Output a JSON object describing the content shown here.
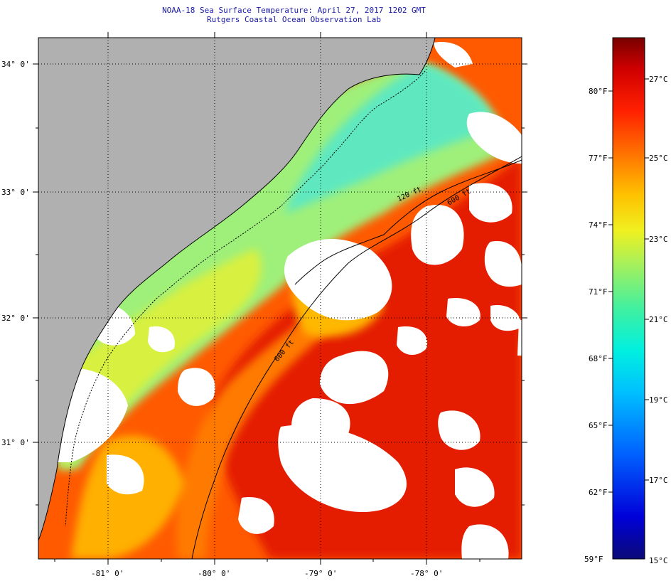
{
  "title": {
    "line1": "NOAA-18 Sea Surface Temperature:  April 27, 2017 1202 GMT",
    "line2": "Rutgers Coastal Ocean Observation Lab"
  },
  "map": {
    "lat_labels": [
      "34° 0'",
      "33° 0'",
      "32° 0'",
      "31° 0'"
    ],
    "lon_labels": [
      "-81° 0'",
      "-80° 0'",
      "-79° 0'",
      "-78° 0'"
    ],
    "isobaths": [
      "120 ft",
      "600 ft",
      "600 ft"
    ]
  },
  "colorbar": {
    "f_labels": [
      "80°F",
      "77°F",
      "74°F",
      "71°F",
      "68°F",
      "65°F",
      "62°F",
      "59°F"
    ],
    "c_labels": [
      "27°C",
      "25°C",
      "23°C",
      "21°C",
      "19°C",
      "17°C",
      "15°C"
    ],
    "colors": [
      "#0a0a78",
      "#0000d8",
      "#0060ff",
      "#00c0ff",
      "#00f0e0",
      "#40f0a0",
      "#a0f060",
      "#f0f020",
      "#ffc000",
      "#ff7000",
      "#ff2000",
      "#d00000",
      "#780000"
    ]
  },
  "colors": {
    "land": "#b0b0b0",
    "cloud": "#ffffff",
    "title_text": "#1a1aa8"
  }
}
